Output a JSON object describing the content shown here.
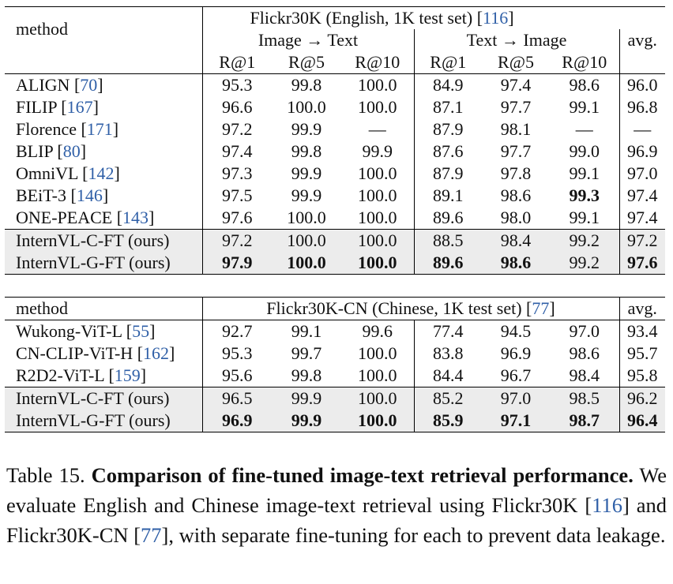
{
  "table1": {
    "method_header": "method",
    "dataset_title": "Flickr30K (English, 1K test set) [",
    "dataset_ref": "116",
    "dataset_close": "]",
    "group_i2t": "Image → Text",
    "group_t2i": "Text → Image",
    "avg_header": "avg.",
    "metrics": [
      "R@1",
      "R@5",
      "R@10",
      "R@1",
      "R@5",
      "R@10"
    ],
    "rows": [
      {
        "name": "ALIGN ",
        "ref": "70",
        "values": [
          "95.3",
          "99.8",
          "100.0",
          "84.9",
          "97.4",
          "98.6",
          "96.0"
        ],
        "bold": [],
        "highlight": false
      },
      {
        "name": "FILIP ",
        "ref": "167",
        "values": [
          "96.6",
          "100.0",
          "100.0",
          "87.1",
          "97.7",
          "99.1",
          "96.8"
        ],
        "bold": [],
        "highlight": false
      },
      {
        "name": "Florence ",
        "ref": "171",
        "values": [
          "97.2",
          "99.9",
          "—",
          "87.9",
          "98.1",
          "—",
          "—"
        ],
        "bold": [],
        "highlight": false
      },
      {
        "name": "BLIP ",
        "ref": "80",
        "values": [
          "97.4",
          "99.8",
          "99.9",
          "87.6",
          "97.7",
          "99.0",
          "96.9"
        ],
        "bold": [],
        "highlight": false
      },
      {
        "name": "OmniVL ",
        "ref": "142",
        "values": [
          "97.3",
          "99.9",
          "100.0",
          "87.9",
          "97.8",
          "99.1",
          "97.0"
        ],
        "bold": [],
        "highlight": false
      },
      {
        "name": "BEiT-3 ",
        "ref": "146",
        "values": [
          "97.5",
          "99.9",
          "100.0",
          "89.1",
          "98.6",
          "99.3",
          "97.4"
        ],
        "bold": [
          5
        ],
        "highlight": false
      },
      {
        "name": "ONE-PEACE ",
        "ref": "143",
        "values": [
          "97.6",
          "100.0",
          "100.0",
          "89.6",
          "98.0",
          "99.1",
          "97.4"
        ],
        "bold": [],
        "highlight": false
      },
      {
        "name": "InternVL-C-FT (ours)",
        "ref": "",
        "values": [
          "97.2",
          "100.0",
          "100.0",
          "88.5",
          "98.4",
          "99.2",
          "97.2"
        ],
        "bold": [],
        "highlight": true
      },
      {
        "name": "InternVL-G-FT (ours)",
        "ref": "",
        "values": [
          "97.9",
          "100.0",
          "100.0",
          "89.6",
          "98.6",
          "99.2",
          "97.6"
        ],
        "bold": [
          0,
          1,
          2,
          3,
          4,
          6
        ],
        "highlight": true
      }
    ]
  },
  "table2": {
    "method_header": "method",
    "dataset_title": "Flickr30K-CN (Chinese, 1K test set) [",
    "dataset_ref": "77",
    "dataset_close": "]",
    "avg_header": "avg.",
    "rows": [
      {
        "name": "Wukong-ViT-L ",
        "ref": "55",
        "values": [
          "92.7",
          "99.1",
          "99.6",
          "77.4",
          "94.5",
          "97.0",
          "93.4"
        ],
        "bold": [],
        "highlight": false
      },
      {
        "name": "CN-CLIP-ViT-H ",
        "ref": "162",
        "values": [
          "95.3",
          "99.7",
          "100.0",
          "83.8",
          "96.9",
          "98.6",
          "95.7"
        ],
        "bold": [],
        "highlight": false
      },
      {
        "name": "R2D2-ViT-L ",
        "ref": "159",
        "values": [
          "95.6",
          "99.8",
          "100.0",
          "84.4",
          "96.7",
          "98.4",
          "95.8"
        ],
        "bold": [],
        "highlight": false
      },
      {
        "name": "InternVL-C-FT (ours)",
        "ref": "",
        "values": [
          "96.5",
          "99.9",
          "100.0",
          "85.2",
          "97.0",
          "98.5",
          "96.2"
        ],
        "bold": [],
        "highlight": true
      },
      {
        "name": "InternVL-G-FT (ours)",
        "ref": "",
        "values": [
          "96.9",
          "99.9",
          "100.0",
          "85.9",
          "97.1",
          "98.7",
          "96.4"
        ],
        "bold": [
          0,
          1,
          2,
          3,
          4,
          5,
          6
        ],
        "highlight": true
      }
    ]
  },
  "caption": {
    "label": "Table 15. ",
    "bold_title": "Comparison of fine-tuned image-text retrieval performance.",
    "text_1": " We evaluate English and Chinese image-text retrieval using Flickr30K [",
    "ref_1": "116",
    "text_2": "] and Flickr30K-CN [",
    "ref_2": "77",
    "text_3": "], with separate fine-tuning for each to prevent data leakage."
  }
}
